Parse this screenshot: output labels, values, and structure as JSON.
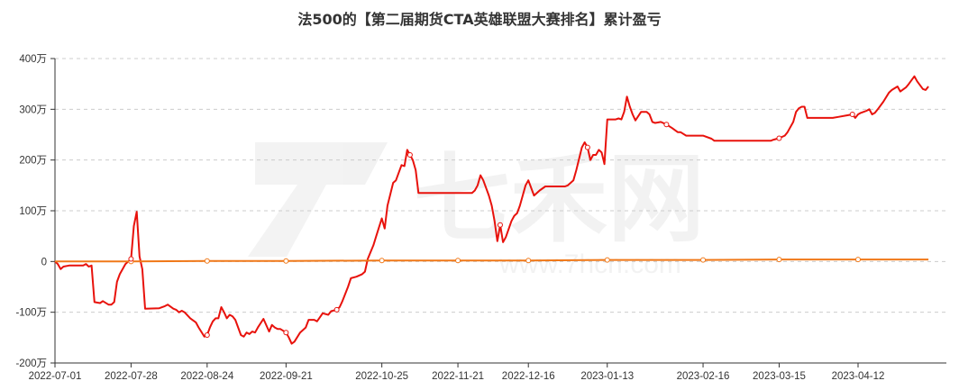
{
  "title": "法500的【第二届期货CTA英雄联盟大赛排名】累计盈亏",
  "watermark": {
    "brand": "七禾网",
    "url": "www.7hcn.com"
  },
  "colors": {
    "series_main": "#e8120c",
    "series_benchmark": "#f07818",
    "grid": "#cccccc",
    "axis": "#333333"
  },
  "chart_data": {
    "type": "line",
    "grid": true,
    "y_unit": "万",
    "ylim": [
      -200,
      400
    ],
    "y_ticks": [
      {
        "value": 400,
        "label": "400万"
      },
      {
        "value": 300,
        "label": "300万"
      },
      {
        "value": 200,
        "label": "200万"
      },
      {
        "value": 100,
        "label": "100万"
      },
      {
        "value": 0,
        "label": "0"
      },
      {
        "value": -100,
        "label": "-100万"
      },
      {
        "value": -200,
        "label": "-200万"
      }
    ],
    "xlim": [
      "2022-07-01",
      "2023-05-10"
    ],
    "x_ticks": [
      "2022-07-01",
      "2022-07-28",
      "2022-08-24",
      "2022-09-21",
      "2022-10-25",
      "2022-11-21",
      "2022-12-16",
      "2023-01-13",
      "2023-02-16",
      "2023-03-15",
      "2023-04-12"
    ],
    "series": [
      {
        "values": [
          [
            "2022-07-01",
            0
          ],
          [
            "2022-07-02",
            -5
          ],
          [
            "2022-07-03",
            -15
          ],
          [
            "2022-07-04",
            -10
          ],
          [
            "2022-07-06",
            -8
          ],
          [
            "2022-07-11",
            -8
          ],
          [
            "2022-07-12",
            -5
          ],
          [
            "2022-07-13",
            -10
          ],
          [
            "2022-07-14",
            -8
          ],
          [
            "2022-07-15",
            -80
          ],
          [
            "2022-07-17",
            -82
          ],
          [
            "2022-07-18",
            -78
          ],
          [
            "2022-07-20",
            -85
          ],
          [
            "2022-07-21",
            -85
          ],
          [
            "2022-07-22",
            -80
          ],
          [
            "2022-07-23",
            -40
          ],
          [
            "2022-07-24",
            -25
          ],
          [
            "2022-07-26",
            -5
          ],
          [
            "2022-07-28",
            5
          ],
          [
            "2022-07-29",
            70
          ],
          [
            "2022-07-30",
            98
          ],
          [
            "2022-07-31",
            10
          ],
          [
            "2022-08-01",
            -15
          ],
          [
            "2022-08-02",
            -93
          ],
          [
            "2022-08-07",
            -92
          ],
          [
            "2022-08-09",
            -88
          ],
          [
            "2022-08-10",
            -85
          ],
          [
            "2022-08-12",
            -93
          ],
          [
            "2022-08-13",
            -95
          ],
          [
            "2022-08-14",
            -100
          ],
          [
            "2022-08-15",
            -97
          ],
          [
            "2022-08-16",
            -100
          ],
          [
            "2022-08-18",
            -112
          ],
          [
            "2022-08-20",
            -120
          ],
          [
            "2022-08-21",
            -130
          ],
          [
            "2022-08-23",
            -148
          ],
          [
            "2022-08-24",
            -145
          ],
          [
            "2022-08-25",
            -130
          ],
          [
            "2022-08-26",
            -118
          ],
          [
            "2022-08-27",
            -112
          ],
          [
            "2022-08-28",
            -112
          ],
          [
            "2022-08-29",
            -90
          ],
          [
            "2022-08-30",
            -100
          ],
          [
            "2022-08-31",
            -112
          ],
          [
            "2022-09-01",
            -105
          ],
          [
            "2022-09-02",
            -108
          ],
          [
            "2022-09-03",
            -115
          ],
          [
            "2022-09-05",
            -145
          ],
          [
            "2022-09-06",
            -148
          ],
          [
            "2022-09-07",
            -140
          ],
          [
            "2022-09-08",
            -143
          ],
          [
            "2022-09-09",
            -138
          ],
          [
            "2022-09-10",
            -140
          ],
          [
            "2022-09-11",
            -130
          ],
          [
            "2022-09-13",
            -113
          ],
          [
            "2022-09-15",
            -138
          ],
          [
            "2022-09-16",
            -125
          ],
          [
            "2022-09-17",
            -130
          ],
          [
            "2022-09-18",
            -133
          ],
          [
            "2022-09-19",
            -133
          ],
          [
            "2022-09-21",
            -140
          ],
          [
            "2022-09-22",
            -150
          ],
          [
            "2022-09-23",
            -162
          ],
          [
            "2022-09-24",
            -158
          ],
          [
            "2022-09-26",
            -140
          ],
          [
            "2022-09-28",
            -130
          ],
          [
            "2022-09-29",
            -115
          ],
          [
            "2022-10-01",
            -115
          ],
          [
            "2022-10-02",
            -118
          ],
          [
            "2022-10-03",
            -110
          ],
          [
            "2022-10-04",
            -102
          ],
          [
            "2022-10-06",
            -105
          ],
          [
            "2022-10-07",
            -98
          ],
          [
            "2022-10-09",
            -95
          ],
          [
            "2022-10-10",
            -90
          ],
          [
            "2022-10-11",
            -78
          ],
          [
            "2022-10-13",
            -50
          ],
          [
            "2022-10-14",
            -33
          ],
          [
            "2022-10-16",
            -30
          ],
          [
            "2022-10-18",
            -25
          ],
          [
            "2022-10-19",
            -20
          ],
          [
            "2022-10-20",
            5
          ],
          [
            "2022-10-22",
            32
          ],
          [
            "2022-10-23",
            50
          ],
          [
            "2022-10-25",
            85
          ],
          [
            "2022-10-26",
            65
          ],
          [
            "2022-10-27",
            110
          ],
          [
            "2022-10-29",
            155
          ],
          [
            "2022-10-30",
            160
          ],
          [
            "2022-11-01",
            190
          ],
          [
            "2022-11-02",
            188
          ],
          [
            "2022-11-03",
            220
          ],
          [
            "2022-11-04",
            210
          ],
          [
            "2022-11-05",
            200
          ],
          [
            "2022-11-06",
            180
          ],
          [
            "2022-11-07",
            135
          ],
          [
            "2022-11-08",
            135
          ],
          [
            "2022-11-26",
            135
          ],
          [
            "2022-11-27",
            140
          ],
          [
            "2022-11-28",
            150
          ],
          [
            "2022-11-29",
            170
          ],
          [
            "2022-11-30",
            160
          ],
          [
            "2022-12-02",
            130
          ],
          [
            "2022-12-03",
            110
          ],
          [
            "2022-12-04",
            80
          ],
          [
            "2022-12-05",
            40
          ],
          [
            "2022-12-06",
            72
          ],
          [
            "2022-12-07",
            38
          ],
          [
            "2022-12-08",
            48
          ],
          [
            "2022-12-10",
            80
          ],
          [
            "2022-12-11",
            90
          ],
          [
            "2022-12-12",
            95
          ],
          [
            "2022-12-13",
            110
          ],
          [
            "2022-12-15",
            150
          ],
          [
            "2022-12-16",
            160
          ],
          [
            "2022-12-18",
            130
          ],
          [
            "2022-12-20",
            140
          ],
          [
            "2022-12-22",
            148
          ],
          [
            "2022-12-29",
            148
          ],
          [
            "2022-12-30",
            150
          ],
          [
            "2023-01-01",
            160
          ],
          [
            "2023-01-02",
            180
          ],
          [
            "2023-01-04",
            225
          ],
          [
            "2023-01-05",
            235
          ],
          [
            "2023-01-06",
            225
          ],
          [
            "2023-01-07",
            200
          ],
          [
            "2023-01-08",
            210
          ],
          [
            "2023-01-09",
            210
          ],
          [
            "2023-01-10",
            220
          ],
          [
            "2023-01-11",
            215
          ],
          [
            "2023-01-12",
            192
          ],
          [
            "2023-01-13",
            280
          ],
          [
            "2023-01-14",
            280
          ],
          [
            "2023-01-16",
            280
          ],
          [
            "2023-01-17",
            282
          ],
          [
            "2023-01-18",
            280
          ],
          [
            "2023-01-19",
            295
          ],
          [
            "2023-01-20",
            325
          ],
          [
            "2023-01-21",
            305
          ],
          [
            "2023-01-22",
            290
          ],
          [
            "2023-01-23",
            278
          ],
          [
            "2023-01-25",
            295
          ],
          [
            "2023-01-27",
            295
          ],
          [
            "2023-01-28",
            290
          ],
          [
            "2023-01-29",
            275
          ],
          [
            "2023-01-30",
            273
          ],
          [
            "2023-02-01",
            275
          ],
          [
            "2023-02-03",
            270
          ],
          [
            "2023-02-05",
            263
          ],
          [
            "2023-02-07",
            255
          ],
          [
            "2023-02-08",
            255
          ],
          [
            "2023-02-10",
            248
          ],
          [
            "2023-02-11",
            248
          ],
          [
            "2023-02-16",
            248
          ],
          [
            "2023-02-19",
            242
          ],
          [
            "2023-02-20",
            238
          ],
          [
            "2023-03-12",
            238
          ],
          [
            "2023-03-13",
            240
          ],
          [
            "2023-03-15",
            243
          ],
          [
            "2023-03-17",
            248
          ],
          [
            "2023-03-18",
            255
          ],
          [
            "2023-03-20",
            275
          ],
          [
            "2023-03-21",
            295
          ],
          [
            "2023-03-22",
            302
          ],
          [
            "2023-03-23",
            305
          ],
          [
            "2023-03-24",
            305
          ],
          [
            "2023-03-25",
            283
          ],
          [
            "2023-03-27",
            283
          ],
          [
            "2023-04-03",
            283
          ],
          [
            "2023-04-05",
            285
          ],
          [
            "2023-04-08",
            288
          ],
          [
            "2023-04-10",
            290
          ],
          [
            "2023-04-11",
            283
          ],
          [
            "2023-04-12",
            290
          ],
          [
            "2023-04-13",
            293
          ],
          [
            "2023-04-14",
            295
          ],
          [
            "2023-04-15",
            297
          ],
          [
            "2023-04-16",
            300
          ],
          [
            "2023-04-17",
            290
          ],
          [
            "2023-04-18",
            293
          ],
          [
            "2023-04-19",
            300
          ],
          [
            "2023-04-21",
            315
          ],
          [
            "2023-04-23",
            333
          ],
          [
            "2023-04-24",
            338
          ],
          [
            "2023-04-26",
            345
          ],
          [
            "2023-04-27",
            335
          ],
          [
            "2023-04-29",
            343
          ],
          [
            "2023-04-30",
            350
          ],
          [
            "2023-05-02",
            365
          ],
          [
            "2023-05-03",
            355
          ],
          [
            "2023-05-05",
            340
          ],
          [
            "2023-05-06",
            338
          ],
          [
            "2023-05-07",
            345
          ]
        ]
      },
      {
        "values": [
          [
            "2022-07-01",
            0
          ],
          [
            "2022-07-28",
            0
          ],
          [
            "2022-08-24",
            1
          ],
          [
            "2022-09-21",
            1
          ],
          [
            "2022-10-25",
            2
          ],
          [
            "2022-11-21",
            2
          ],
          [
            "2022-12-16",
            2
          ],
          [
            "2023-01-13",
            3
          ],
          [
            "2023-02-16",
            3
          ],
          [
            "2023-03-15",
            4
          ],
          [
            "2023-04-12",
            4
          ],
          [
            "2023-05-07",
            4
          ]
        ]
      }
    ],
    "markers_main": [
      "2022-07-28",
      "2022-08-24",
      "2022-09-21",
      "2022-10-09",
      "2022-11-04",
      "2022-12-06",
      "2023-01-06",
      "2023-02-03",
      "2023-03-15",
      "2023-04-10"
    ],
    "markers_benchmark": [
      "2022-07-28",
      "2022-08-24",
      "2022-09-21",
      "2022-10-25",
      "2022-11-21",
      "2022-12-16",
      "2023-01-13",
      "2023-02-16",
      "2023-03-15",
      "2023-04-12"
    ]
  }
}
